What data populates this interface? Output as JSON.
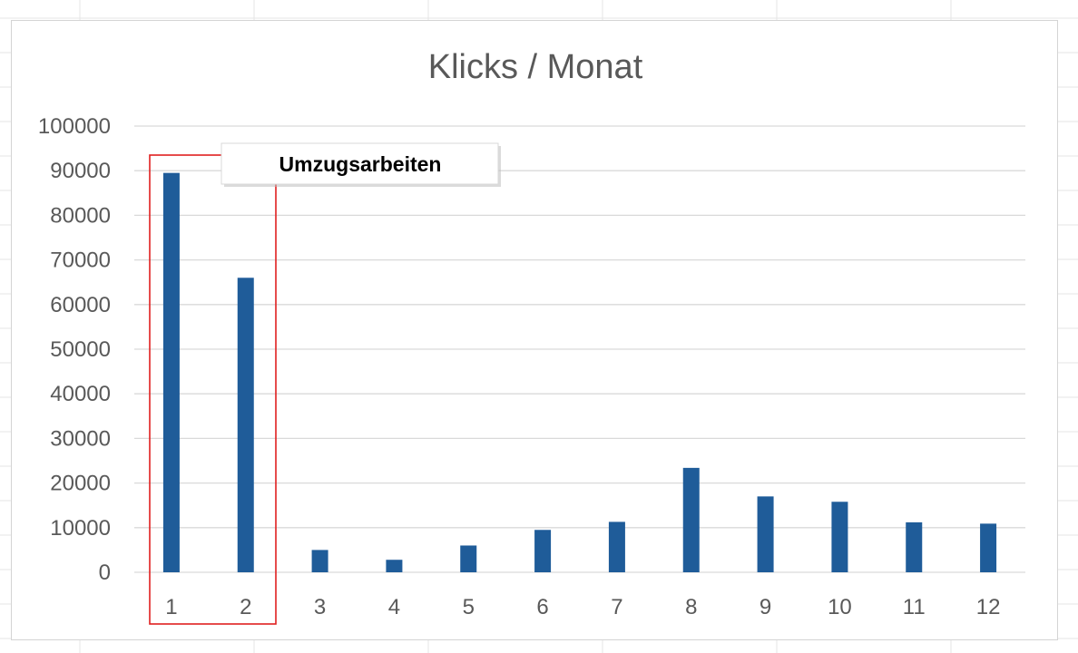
{
  "chart_data": {
    "type": "bar",
    "title": "Klicks / Monat",
    "xlabel": "",
    "ylabel": "",
    "categories": [
      "1",
      "2",
      "3",
      "4",
      "5",
      "6",
      "7",
      "8",
      "9",
      "10",
      "11",
      "12"
    ],
    "values": [
      89500,
      66000,
      5000,
      2800,
      6000,
      9500,
      11300,
      23400,
      17000,
      15800,
      11200,
      10900
    ],
    "ylim": [
      0,
      100000
    ],
    "yticks": [
      "0",
      "10000",
      "20000",
      "30000",
      "40000",
      "50000",
      "60000",
      "70000",
      "80000",
      "90000",
      "100000"
    ],
    "grid": true,
    "legend": "none",
    "bar_color": "#1f5c99",
    "annotation": {
      "text": "Umzugsarbeiten",
      "highlighted_categories": [
        "1",
        "2"
      ],
      "highlight_color": "#e02020"
    }
  },
  "colors": {
    "gridline": "#d9d9d9",
    "axis_text": "#595959",
    "sheet_grid": "#e6e6e6"
  }
}
